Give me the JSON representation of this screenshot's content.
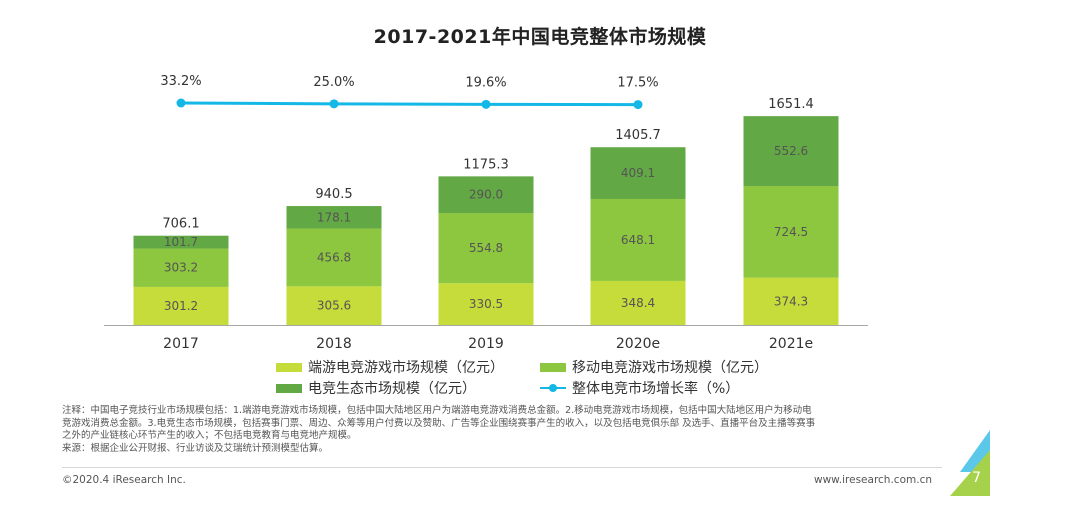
{
  "chart_data": {
    "type": "bar",
    "title": "2017-2021年中国电竞整体市场规模",
    "categories": [
      "2017",
      "2018",
      "2019",
      "2020e",
      "2021e"
    ],
    "series": [
      {
        "name": "端游电竞游戏市场规模（亿元）",
        "values": [
          301.2,
          305.6,
          330.5,
          348.4,
          374.3
        ],
        "color": "#c5dc3a"
      },
      {
        "name": "移动电竞游戏市场规模（亿元）",
        "values": [
          303.2,
          456.8,
          554.8,
          648.1,
          724.5
        ],
        "color": "#8dc63f"
      },
      {
        "name": "电竞生态市场规模（亿元）",
        "values": [
          101.7,
          178.1,
          290.0,
          409.1,
          552.6
        ],
        "color": "#62a844"
      }
    ],
    "totals": [
      706.1,
      940.5,
      1175.3,
      1405.7,
      1651.4
    ],
    "line_series": {
      "name": "整体电竞市场增长率（%）",
      "values": [
        33.2,
        25.0,
        19.6,
        17.5
      ],
      "categories": [
        "2018",
        "2019",
        "2020e",
        "2021e"
      ],
      "color": "#14b8e6"
    },
    "stacked": true,
    "ylim": [
      0,
      1700
    ],
    "grid": false,
    "legend_position": "bottom"
  },
  "legend": [
    {
      "label": "端游电竞游戏市场规模（亿元）",
      "color": "#c5dc3a",
      "kind": "bar"
    },
    {
      "label": "移动电竞游戏市场规模（亿元）",
      "color": "#8dc63f",
      "kind": "bar"
    },
    {
      "label": "电竞生态市场规模（亿元）",
      "color": "#62a844",
      "kind": "bar"
    },
    {
      "label": "整体电竞市场增长率（%）",
      "color": "#14b8e6",
      "kind": "line"
    }
  ],
  "notes": {
    "line1": "注释：中国电子竞技行业市场规模包括：1.端游电竞游戏市场规模，包括中国大陆地区用户为端游电竞游戏消费总金额。2.移动电竞游戏市场规模，包括中国大陆地区用户为移动电",
    "line2": "竞游戏消费总金额。3.电竞生态市场规模，包括赛事门票、周边、众筹等用户付费以及赞助、广告等企业围绕赛事产生的收入，以及包括电竞俱乐部 及选手、直播平台及主播等赛事",
    "line3": "之外的产业链核心环节产生的收入；不包括电竞教育与电竞地产规模。",
    "source": "来源：根据企业公开财报、行业访谈及艾瑞统计预测模型估算。"
  },
  "footer": {
    "copyright": "©2020.4 iResearch Inc.",
    "website": "www.iresearch.com.cn",
    "page_number": "7"
  }
}
